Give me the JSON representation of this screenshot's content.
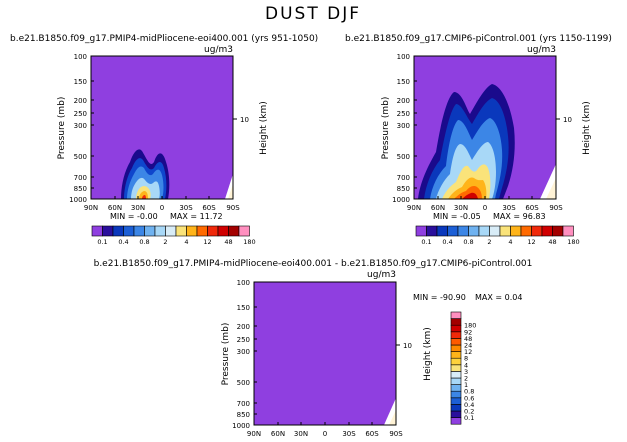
{
  "figure": {
    "title": "DUST DJF"
  },
  "palette_main": {
    "colors": [
      "#8f3fe0",
      "#2a0f9c",
      "#0a38bc",
      "#1c5fd6",
      "#3c86e6",
      "#6fb2f0",
      "#a8d8f7",
      "#d8ecf7",
      "#fae37a",
      "#ffb41a",
      "#ff6a00",
      "#f0290a",
      "#d00000",
      "#a30000",
      "#ff8fbf"
    ],
    "labels": [
      "0.1",
      "0.4",
      "0.8",
      "2",
      "4",
      "12",
      "48",
      "180"
    ]
  },
  "palette_diff": {
    "colors": [
      "#8f3fe0",
      "#2a0f9c",
      "#0a38bc",
      "#1c5fd6",
      "#3c86e6",
      "#6fb2f0",
      "#a8d8f7",
      "#d8ecf7",
      "#fae37a",
      "#ffd23c",
      "#ffb41a",
      "#ff8a00",
      "#ff5a00",
      "#f0290a",
      "#d00000",
      "#a30000",
      "#ff8fbf"
    ],
    "labels": [
      "0.1",
      "0.2",
      "0.4",
      "0.6",
      "0.8",
      "1",
      "2",
      "3",
      "4",
      "8",
      "12",
      "24",
      "48",
      "92",
      "180"
    ]
  },
  "chart_data": [
    {
      "type": "heatmap",
      "title": "b.e21.B1850.f09_g17.PMIP4-midPliocene-eoi400.001 (yrs 951-1050)",
      "units": "ug/m3",
      "ylabel": "Pressure (mb)",
      "ylabel_right": "Height (km)",
      "right_tick": "10",
      "x_ticks": [
        "90N",
        "60N",
        "30N",
        "0",
        "30S",
        "60S",
        "90S"
      ],
      "y_ticks": [
        "100",
        "150",
        "200",
        "250",
        "300",
        "500",
        "700",
        "850",
        "1000"
      ],
      "min_label": "MIN = -0.00",
      "max_label": "MAX = 11.72",
      "min": -0.0,
      "max": 11.72
    },
    {
      "type": "heatmap",
      "title": "b.e21.B1850.f09_g17.CMIP6-piControl.001 (yrs 1150-1199)",
      "units": "ug/m3",
      "ylabel": "Pressure (mb)",
      "ylabel_right": "Height (km)",
      "right_tick": "10",
      "x_ticks": [
        "90N",
        "60N",
        "30N",
        "0",
        "30S",
        "60S",
        "90S"
      ],
      "y_ticks": [
        "100",
        "150",
        "200",
        "250",
        "300",
        "500",
        "700",
        "850",
        "1000"
      ],
      "min_label": "MIN = -0.05",
      "max_label": "MAX = 96.83",
      "min": -0.05,
      "max": 96.83
    },
    {
      "type": "heatmap",
      "title": "b.e21.B1850.f09_g17.PMIP4-midPliocene-eoi400.001 - b.e21.B1850.f09_g17.CMIP6-piControl.001",
      "units": "ug/m3",
      "ylabel": "Pressure (mb)",
      "ylabel_right": "Height (km)",
      "right_tick": "10",
      "x_ticks": [
        "90N",
        "60N",
        "30N",
        "0",
        "30S",
        "60S",
        "90S"
      ],
      "y_ticks": [
        "100",
        "150",
        "200",
        "250",
        "300",
        "500",
        "700",
        "850",
        "1000"
      ],
      "min_label": "MIN = -90.90",
      "max_label": "MAX = 0.04",
      "min": -90.9,
      "max": 0.04
    }
  ]
}
